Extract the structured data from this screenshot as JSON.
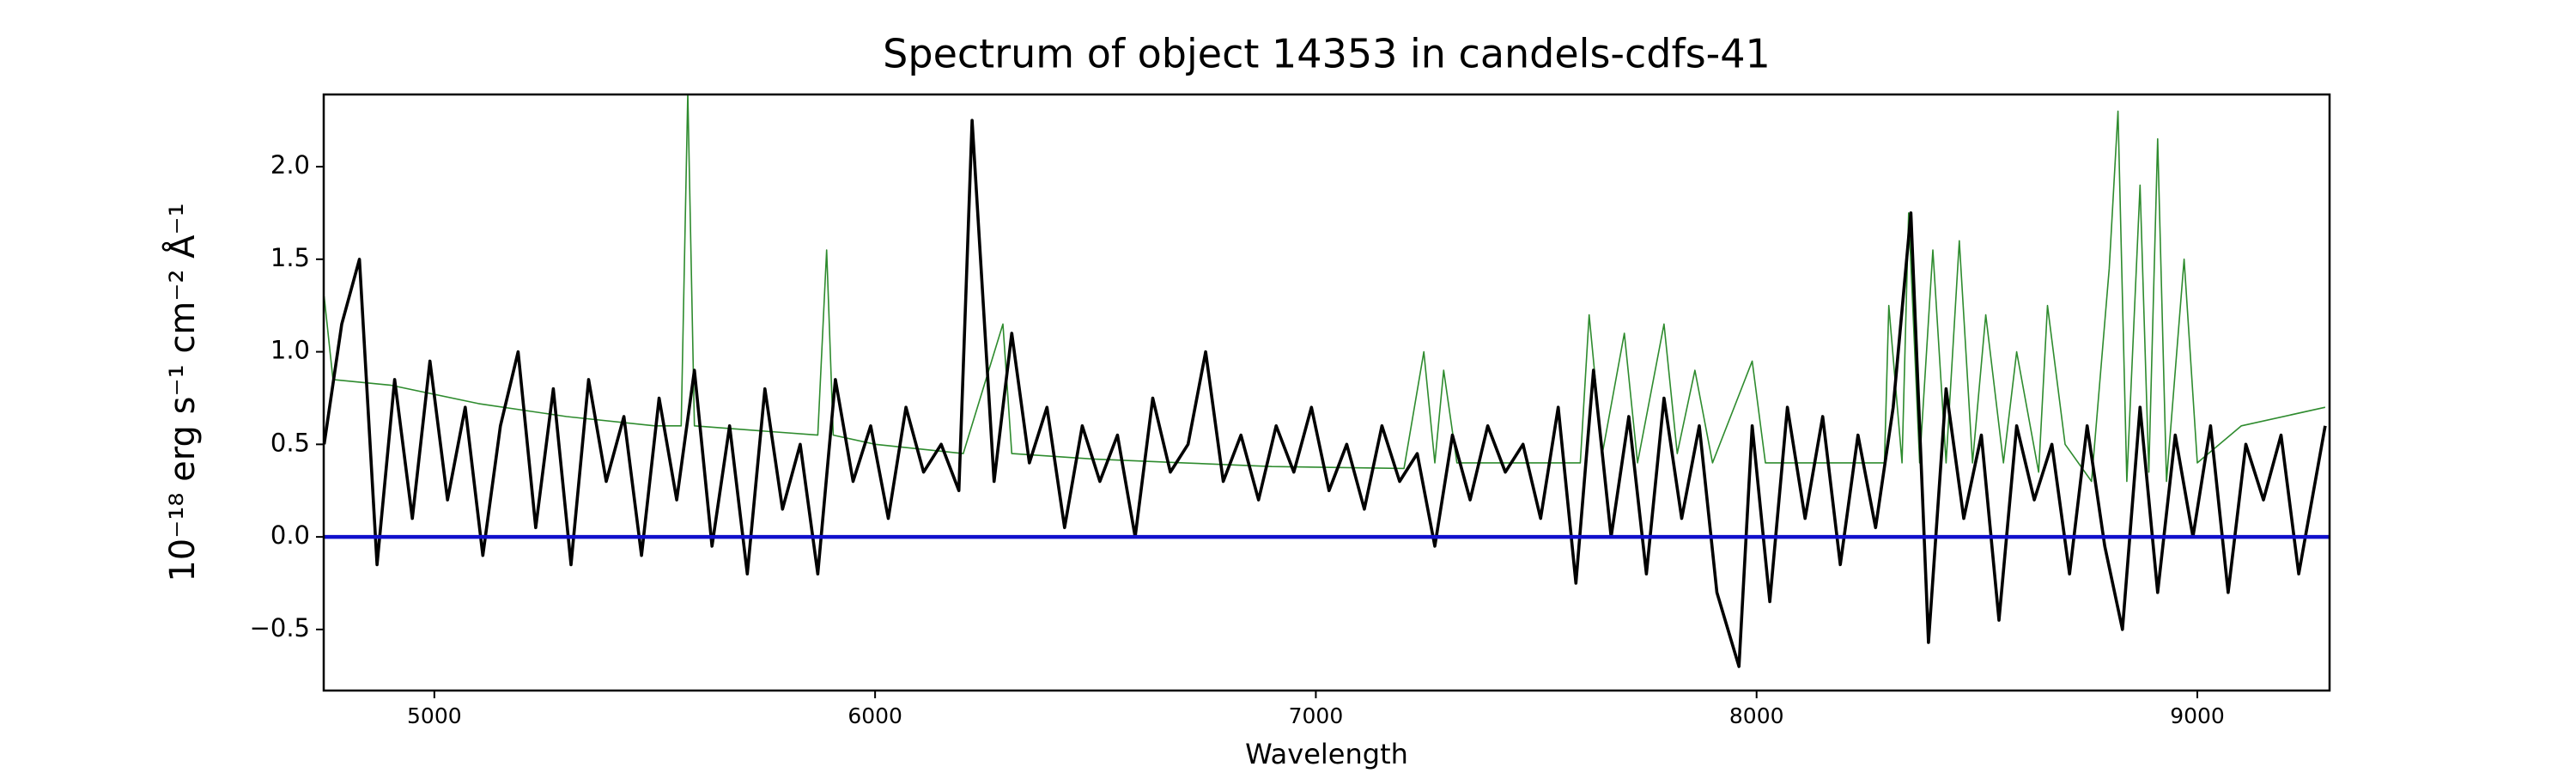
{
  "chart_data": {
    "type": "line",
    "title": "Spectrum of object 14353 in candels-cdfs-41",
    "x_label": "Wavelength",
    "y_label": "10⁻¹⁸ erg s⁻¹ cm⁻² Å⁻¹",
    "xlim": [
      4749,
      9300
    ],
    "ylim": [
      -0.83,
      2.39
    ],
    "xticks": [
      5000,
      6000,
      7000,
      8000,
      9000
    ],
    "yticks": [
      {
        "value": -0.5,
        "label": "−0.5"
      },
      {
        "value": 0,
        "label": "0.0"
      },
      {
        "value": 0.5,
        "label": "0.5"
      },
      {
        "value": 1,
        "label": "1.0"
      },
      1.5,
      {
        "value": 2,
        "label": "2.0"
      }
    ],
    "series": [
      {
        "color": "#2e8b2e",
        "x": [
          4750,
          4770,
          4900,
          5100,
          5300,
          5500,
          5560,
          5575,
          5590,
          5700,
          5870,
          5890,
          5905,
          6000,
          6200,
          6290,
          6310,
          6500,
          6700,
          6900,
          7200,
          7245,
          7270,
          7290,
          7320,
          7600,
          7620,
          7650,
          7700,
          7730,
          7790,
          7820,
          7860,
          7900,
          7990,
          8020,
          8290,
          8300,
          8330,
          8345,
          8370,
          8400,
          8430,
          8460,
          8490,
          8520,
          8560,
          8590,
          8640,
          8660,
          8700,
          8760,
          8800,
          8820,
          8840,
          8870,
          8890,
          8910,
          8930,
          8970,
          9000,
          9100,
          9290
        ],
        "values": [
          1.3,
          0.85,
          0.82,
          0.72,
          0.65,
          0.6,
          0.6,
          2.4,
          0.6,
          0.58,
          0.55,
          1.55,
          0.55,
          0.5,
          0.45,
          1.15,
          0.45,
          0.42,
          0.4,
          0.38,
          0.37,
          1.0,
          0.4,
          0.9,
          0.4,
          0.4,
          1.2,
          0.45,
          1.1,
          0.4,
          1.15,
          0.45,
          0.9,
          0.4,
          0.95,
          0.4,
          0.4,
          1.25,
          0.4,
          1.75,
          0.4,
          1.55,
          0.4,
          1.6,
          0.4,
          1.2,
          0.4,
          1.0,
          0.35,
          1.25,
          0.5,
          0.3,
          1.45,
          2.3,
          0.3,
          1.9,
          0.35,
          2.15,
          0.3,
          1.5,
          0.4,
          0.6,
          0.7
        ]
      },
      {
        "color": "#000000",
        "x": [
          4750,
          4790,
          4830,
          4870,
          4910,
          4950,
          4990,
          5030,
          5070,
          5110,
          5150,
          5190,
          5230,
          5270,
          5310,
          5350,
          5390,
          5430,
          5470,
          5510,
          5550,
          5590,
          5630,
          5670,
          5710,
          5750,
          5790,
          5830,
          5870,
          5910,
          5950,
          5990,
          6030,
          6070,
          6110,
          6150,
          6190,
          6220,
          6270,
          6310,
          6350,
          6390,
          6430,
          6470,
          6510,
          6550,
          6590,
          6630,
          6670,
          6710,
          6750,
          6790,
          6830,
          6870,
          6910,
          6950,
          6990,
          7030,
          7070,
          7110,
          7150,
          7190,
          7230,
          7270,
          7310,
          7350,
          7390,
          7430,
          7470,
          7510,
          7550,
          7590,
          7630,
          7670,
          7710,
          7750,
          7790,
          7830,
          7870,
          7910,
          7960,
          7990,
          8030,
          8070,
          8110,
          8150,
          8190,
          8230,
          8270,
          8310,
          8350,
          8390,
          8430,
          8470,
          8510,
          8550,
          8590,
          8630,
          8670,
          8710,
          8750,
          8790,
          8830,
          8870,
          8910,
          8950,
          8990,
          9030,
          9070,
          9110,
          9150,
          9190,
          9230,
          9290
        ],
        "values": [
          0.5,
          1.15,
          1.5,
          -0.15,
          0.85,
          0.1,
          0.95,
          0.2,
          0.7,
          -0.1,
          0.6,
          1.0,
          0.05,
          0.8,
          -0.15,
          0.85,
          0.3,
          0.65,
          -0.1,
          0.75,
          0.2,
          0.9,
          -0.05,
          0.6,
          -0.2,
          0.8,
          0.15,
          0.5,
          -0.2,
          0.85,
          0.3,
          0.6,
          0.1,
          0.7,
          0.35,
          0.5,
          0.25,
          2.25,
          0.3,
          1.1,
          0.4,
          0.7,
          0.05,
          0.6,
          0.3,
          0.55,
          0.0,
          0.75,
          0.35,
          0.5,
          1.0,
          0.3,
          0.55,
          0.2,
          0.6,
          0.35,
          0.7,
          0.25,
          0.5,
          0.15,
          0.6,
          0.3,
          0.45,
          -0.05,
          0.55,
          0.2,
          0.6,
          0.35,
          0.5,
          0.1,
          0.7,
          -0.25,
          0.9,
          0.0,
          0.65,
          -0.2,
          0.75,
          0.1,
          0.6,
          -0.3,
          -0.7,
          0.6,
          -0.35,
          0.7,
          0.1,
          0.65,
          -0.15,
          0.55,
          0.05,
          0.7,
          1.75,
          -0.57,
          0.8,
          0.1,
          0.55,
          -0.45,
          0.6,
          0.2,
          0.5,
          -0.2,
          0.6,
          -0.05,
          -0.5,
          0.7,
          -0.3,
          0.55,
          0.0,
          0.6,
          -0.3,
          0.5,
          0.2,
          0.55,
          -0.2,
          0.6
        ]
      },
      {
        "color": "#1010cc",
        "x": [
          4749,
          9300
        ],
        "values": [
          0,
          0
        ]
      }
    ]
  }
}
